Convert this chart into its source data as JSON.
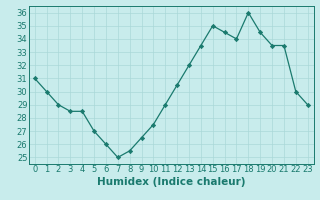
{
  "x": [
    0,
    1,
    2,
    3,
    4,
    5,
    6,
    7,
    8,
    9,
    10,
    11,
    12,
    13,
    14,
    15,
    16,
    17,
    18,
    19,
    20,
    21,
    22,
    23
  ],
  "y": [
    31,
    30,
    29,
    28.5,
    28.5,
    27,
    26,
    25,
    25.5,
    26.5,
    27.5,
    29,
    30.5,
    32,
    33.5,
    35,
    34.5,
    34,
    36,
    34.5,
    33.5,
    33.5,
    30,
    29
  ],
  "xlabel": "Humidex (Indice chaleur)",
  "ylim": [
    24.5,
    36.5
  ],
  "xlim": [
    -0.5,
    23.5
  ],
  "yticks": [
    25,
    26,
    27,
    28,
    29,
    30,
    31,
    32,
    33,
    34,
    35,
    36
  ],
  "xticks": [
    0,
    1,
    2,
    3,
    4,
    5,
    6,
    7,
    8,
    9,
    10,
    11,
    12,
    13,
    14,
    15,
    16,
    17,
    18,
    19,
    20,
    21,
    22,
    23
  ],
  "line_color": "#1a7a6e",
  "marker": "D",
  "marker_size": 2.2,
  "bg_color": "#c8ecec",
  "grid_color": "#aad8d8",
  "tick_label_fontsize": 6,
  "xlabel_fontsize": 7.5
}
